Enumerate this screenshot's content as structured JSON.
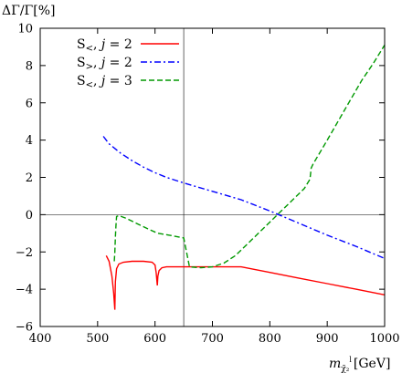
{
  "chart_data": {
    "type": "line",
    "title": "",
    "ylabel": "ΔΓ/Γ[%]",
    "xlabel": {
      "symbol": "m",
      "subscript": "χ̃₂",
      "superscript": "l",
      "unit": "[GeV]"
    },
    "xlim": [
      400,
      1000
    ],
    "ylim": [
      -6,
      10
    ],
    "xticks": [
      400,
      500,
      600,
      700,
      800,
      900,
      1000
    ],
    "yticks": [
      -6,
      -4,
      -2,
      0,
      2,
      4,
      6,
      8,
      10
    ],
    "xtick_labels": [
      "400",
      "500",
      "600",
      "700",
      "800",
      "900",
      "1000"
    ],
    "ytick_labels": [
      "−6",
      "−4",
      "−2",
      "0",
      "2",
      "4",
      "6",
      "8",
      "10"
    ],
    "reference_lines": {
      "vertical_x": 650,
      "horizontal_y": 0
    },
    "legend_position": "top-left",
    "series": [
      {
        "name": "S<, j = 2",
        "legend": {
          "main": "S",
          "sub": "<",
          "rest": ", ",
          "var": "j",
          "eq": " = 2"
        },
        "color": "#ff0000",
        "style": "solid",
        "points": [
          [
            515,
            -2.2
          ],
          [
            520,
            -2.5
          ],
          [
            525,
            -3.3
          ],
          [
            528,
            -4.2
          ],
          [
            530,
            -5.1
          ],
          [
            531,
            -3.6
          ],
          [
            533,
            -2.9
          ],
          [
            537,
            -2.65
          ],
          [
            545,
            -2.55
          ],
          [
            560,
            -2.5
          ],
          [
            580,
            -2.5
          ],
          [
            595,
            -2.55
          ],
          [
            600,
            -2.7
          ],
          [
            602,
            -3.1
          ],
          [
            604,
            -3.8
          ],
          [
            605,
            -3.3
          ],
          [
            607,
            -3.0
          ],
          [
            612,
            -2.85
          ],
          [
            620,
            -2.8
          ],
          [
            640,
            -2.8
          ],
          [
            650,
            -2.8
          ],
          [
            700,
            -2.8
          ],
          [
            750,
            -2.8
          ],
          [
            800,
            -3.1
          ],
          [
            850,
            -3.4
          ],
          [
            900,
            -3.7
          ],
          [
            950,
            -4.0
          ],
          [
            1000,
            -4.3
          ]
        ]
      },
      {
        "name": "S>, j = 2",
        "legend": {
          "main": "S",
          "sub": ">",
          "rest": ", ",
          "var": "j",
          "eq": " = 2"
        },
        "color": "#0000ff",
        "style": "dashdot",
        "points": [
          [
            510,
            4.2
          ],
          [
            520,
            3.8
          ],
          [
            540,
            3.3
          ],
          [
            560,
            2.9
          ],
          [
            580,
            2.55
          ],
          [
            600,
            2.25
          ],
          [
            620,
            2.0
          ],
          [
            650,
            1.7
          ],
          [
            700,
            1.25
          ],
          [
            750,
            0.8
          ],
          [
            800,
            0.2
          ],
          [
            850,
            -0.45
          ],
          [
            900,
            -1.1
          ],
          [
            950,
            -1.7
          ],
          [
            1000,
            -2.35
          ]
        ]
      },
      {
        "name": "S<, j = 3",
        "legend": {
          "main": "S",
          "sub": "<",
          "rest": ", ",
          "var": "j",
          "eq": " = 3"
        },
        "color": "#009900",
        "style": "dashed",
        "points": [
          [
            529,
            -2.5
          ],
          [
            530,
            -2.0
          ],
          [
            531,
            -1.2
          ],
          [
            532,
            -0.6
          ],
          [
            533,
            -0.1
          ],
          [
            537,
            -0.05
          ],
          [
            550,
            -0.2
          ],
          [
            570,
            -0.5
          ],
          [
            590,
            -0.8
          ],
          [
            605,
            -1.0
          ],
          [
            625,
            -1.1
          ],
          [
            650,
            -1.25
          ],
          [
            660,
            -2.8
          ],
          [
            680,
            -2.85
          ],
          [
            700,
            -2.8
          ],
          [
            720,
            -2.6
          ],
          [
            740,
            -2.2
          ],
          [
            760,
            -1.6
          ],
          [
            780,
            -1.0
          ],
          [
            800,
            -0.4
          ],
          [
            820,
            0.2
          ],
          [
            840,
            0.8
          ],
          [
            860,
            1.4
          ],
          [
            870,
            1.9
          ],
          [
            872,
            2.5
          ],
          [
            875,
            2.7
          ],
          [
            900,
            4.0
          ],
          [
            930,
            5.6
          ],
          [
            960,
            7.2
          ],
          [
            980,
            8.1
          ],
          [
            1000,
            9.1
          ]
        ]
      }
    ]
  }
}
